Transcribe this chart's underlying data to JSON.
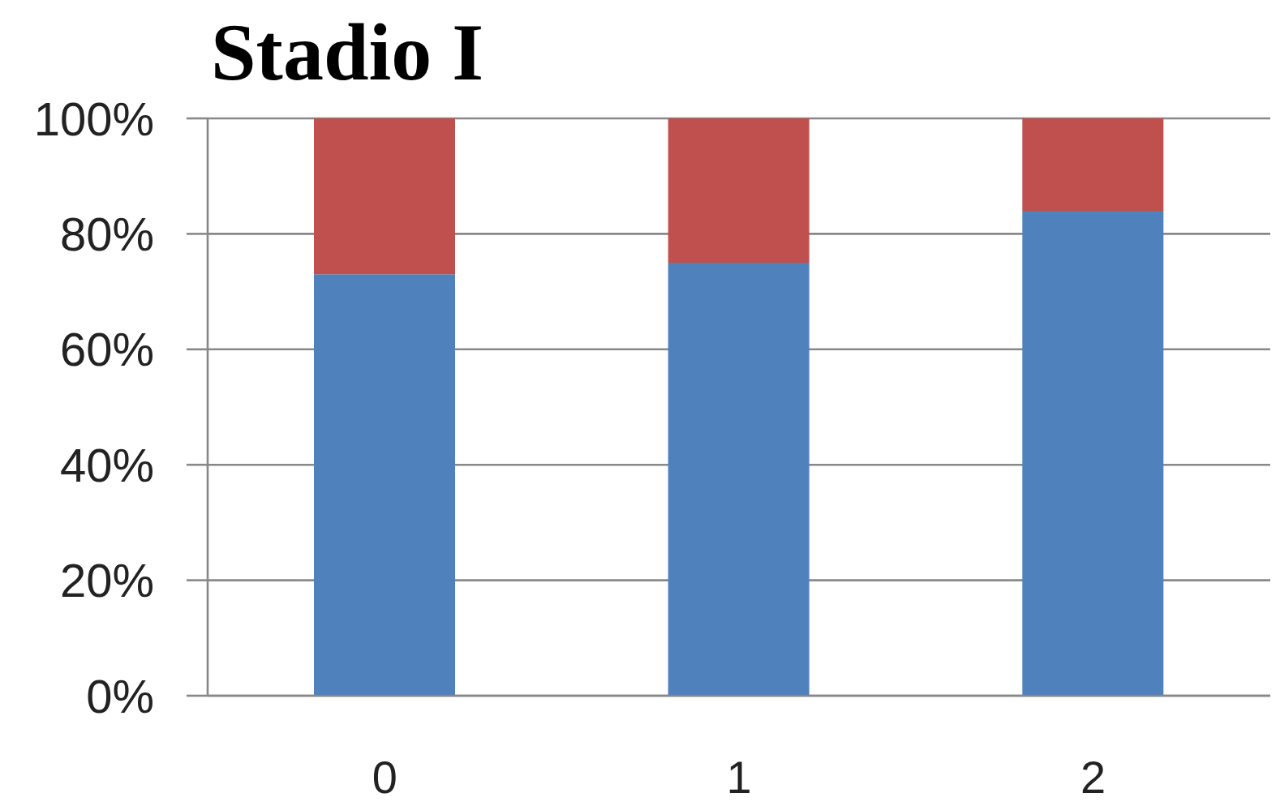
{
  "chart_data": {
    "type": "bar",
    "title": "Stadio I",
    "stacked": true,
    "categories": [
      "0",
      "1",
      "2"
    ],
    "series": [
      {
        "color": "#4f81bd",
        "values": [
          73,
          75,
          84
        ]
      },
      {
        "color": "#c0504d",
        "values": [
          27,
          25,
          16
        ]
      }
    ],
    "ylim": [
      0,
      100
    ],
    "yticks": [
      {
        "value": 0,
        "label": "0%"
      },
      {
        "value": 20,
        "label": "20%"
      },
      {
        "value": 40,
        "label": "40%"
      },
      {
        "value": 60,
        "label": "60%"
      },
      {
        "value": 80,
        "label": "80%"
      },
      {
        "value": 100,
        "label": "100%"
      }
    ],
    "grid": "y",
    "legend": false
  }
}
